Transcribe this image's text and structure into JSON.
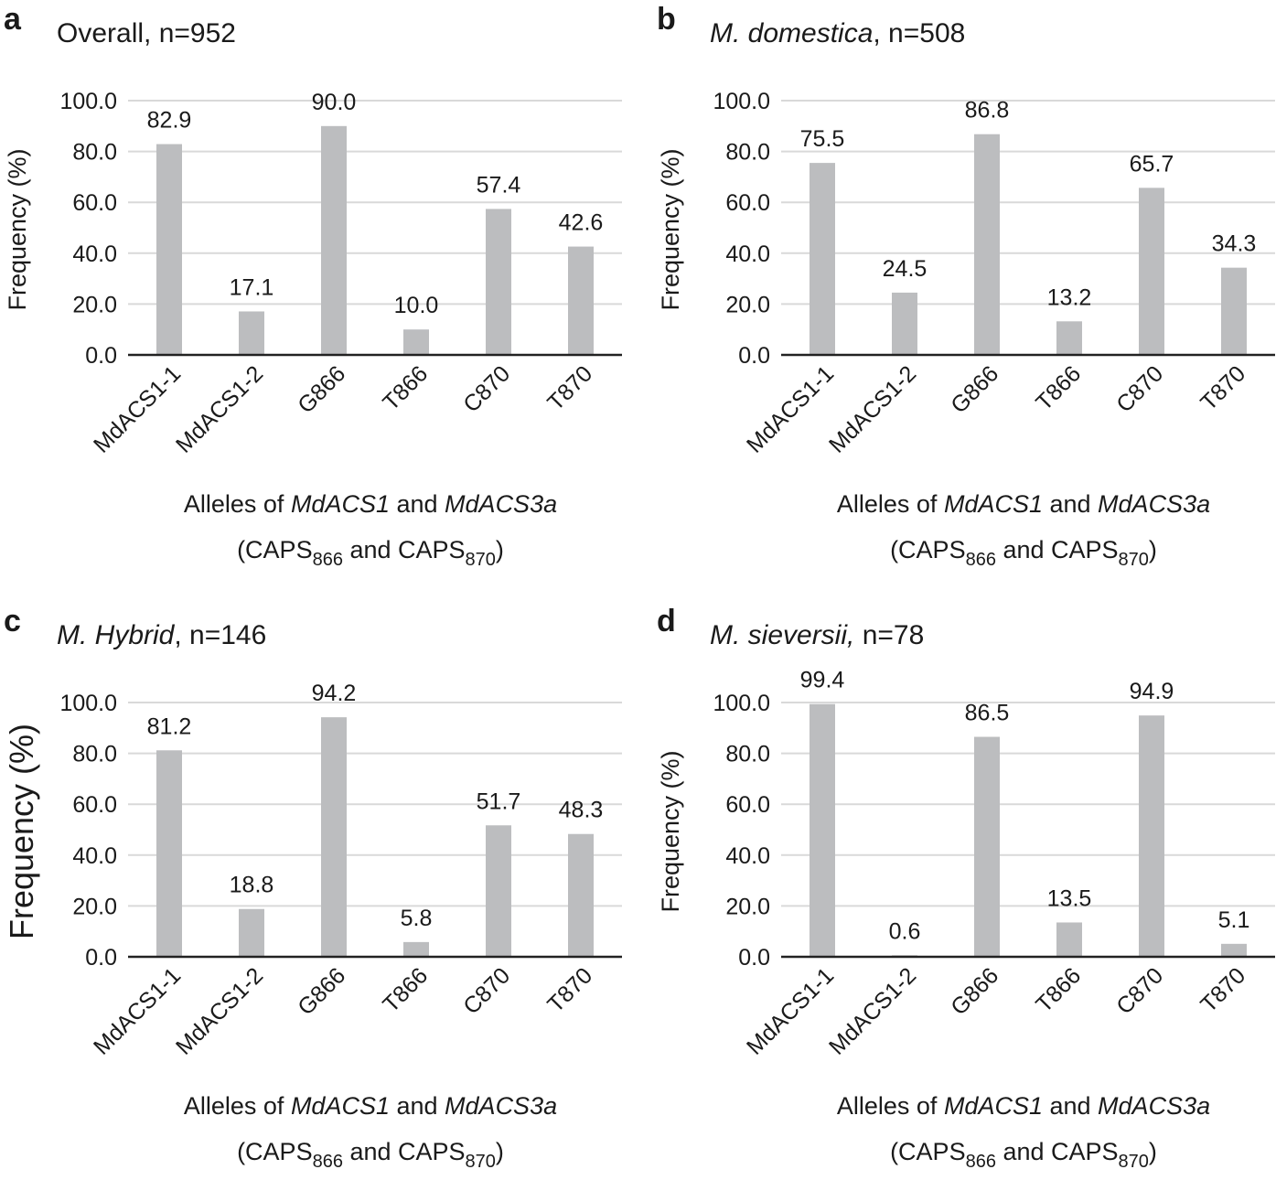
{
  "chart_data": [
    {
      "type": "bar",
      "panel": "a",
      "title": "Overall, n=952",
      "title_italic": "",
      "title_rest": "Overall, n=952",
      "categories": [
        "MdACS1-1",
        "MdACS1-2",
        "G866",
        "T866",
        "C870",
        "T870"
      ],
      "values": [
        82.9,
        17.1,
        90.0,
        10.0,
        57.4,
        42.6
      ],
      "value_labels": [
        "82.9",
        "17.1",
        "90.0",
        "10.0",
        "57.4",
        "42.6"
      ],
      "ylabel": "Frequency (%)",
      "xlabel_line1": {
        "a": "Alleles of ",
        "b": "MdACS1",
        "c": " and ",
        "d": "MdACS3a"
      },
      "xlabel_line2": {
        "a": "(CAPS",
        "b": "866",
        "c": " and CAPS",
        "d": "870",
        "e": ")"
      },
      "yticks": [
        "0.0",
        "20.0",
        "40.0",
        "60.0",
        "80.0",
        "100.0"
      ],
      "ylim": [
        0,
        100
      ],
      "grid": true
    },
    {
      "type": "bar",
      "panel": "b",
      "title": "M. domestica, n=508",
      "title_italic": "M. domestica",
      "title_rest": ", n=508",
      "categories": [
        "MdACS1-1",
        "MdACS1-2",
        "G866",
        "T866",
        "C870",
        "T870"
      ],
      "values": [
        75.5,
        24.5,
        86.8,
        13.2,
        65.7,
        34.3
      ],
      "value_labels": [
        "75.5",
        "24.5",
        "86.8",
        "13.2",
        "65.7",
        "34.3"
      ],
      "ylabel": "Frequency (%)",
      "xlabel_line1": {
        "a": "Alleles of ",
        "b": "MdACS1",
        "c": " and ",
        "d": "MdACS3a"
      },
      "xlabel_line2": {
        "a": "(CAPS",
        "b": "866",
        "c": " and CAPS",
        "d": "870",
        "e": ")"
      },
      "yticks": [
        "0.0",
        "20.0",
        "40.0",
        "60.0",
        "80.0",
        "100.0"
      ],
      "ylim": [
        0,
        100
      ],
      "grid": true
    },
    {
      "type": "bar",
      "panel": "c",
      "title": "M. Hybrid, n=146",
      "title_italic": "M. Hybrid",
      "title_rest": ", n=146",
      "categories": [
        "MdACS1-1",
        "MdACS1-2",
        "G866",
        "T866",
        "C870",
        "T870"
      ],
      "values": [
        81.2,
        18.8,
        94.2,
        5.8,
        51.7,
        48.3
      ],
      "value_labels": [
        "81.2",
        "18.8",
        "94.2",
        "5.8",
        "51.7",
        "48.3"
      ],
      "ylabel": "Frequency (%)",
      "xlabel_line1": {
        "a": "Alleles of ",
        "b": "MdACS1",
        "c": " and ",
        "d": "MdACS3a"
      },
      "xlabel_line2": {
        "a": "(CAPS",
        "b": "866",
        "c": " and CAPS",
        "d": "870",
        "e": ")"
      },
      "yticks": [
        "0.0",
        "20.0",
        "40.0",
        "60.0",
        "80.0",
        "100.0"
      ],
      "ylim": [
        0,
        100
      ],
      "grid": true
    },
    {
      "type": "bar",
      "panel": "d",
      "title": "M. sieversii, n=78",
      "title_italic": "M. sieversii,",
      "title_rest": " n=78",
      "categories": [
        "MdACS1-1",
        "MdACS1-2",
        "G866",
        "T866",
        "C870",
        "T870"
      ],
      "values": [
        99.4,
        0.6,
        86.5,
        13.5,
        94.9,
        5.1
      ],
      "value_labels": [
        "99.4",
        "0.6",
        "86.5",
        "13.5",
        "94.9",
        "5.1"
      ],
      "ylabel": "Frequency (%)",
      "xlabel_line1": {
        "a": "Alleles of ",
        "b": "MdACS1",
        "c": " and ",
        "d": "MdACS3a"
      },
      "xlabel_line2": {
        "a": "(CAPS",
        "b": "866",
        "c": " and CAPS",
        "d": "870",
        "e": ")"
      },
      "yticks": [
        "0.0",
        "20.0",
        "40.0",
        "60.0",
        "80.0",
        "100.0"
      ],
      "ylim": [
        0,
        100
      ],
      "grid": true
    }
  ]
}
